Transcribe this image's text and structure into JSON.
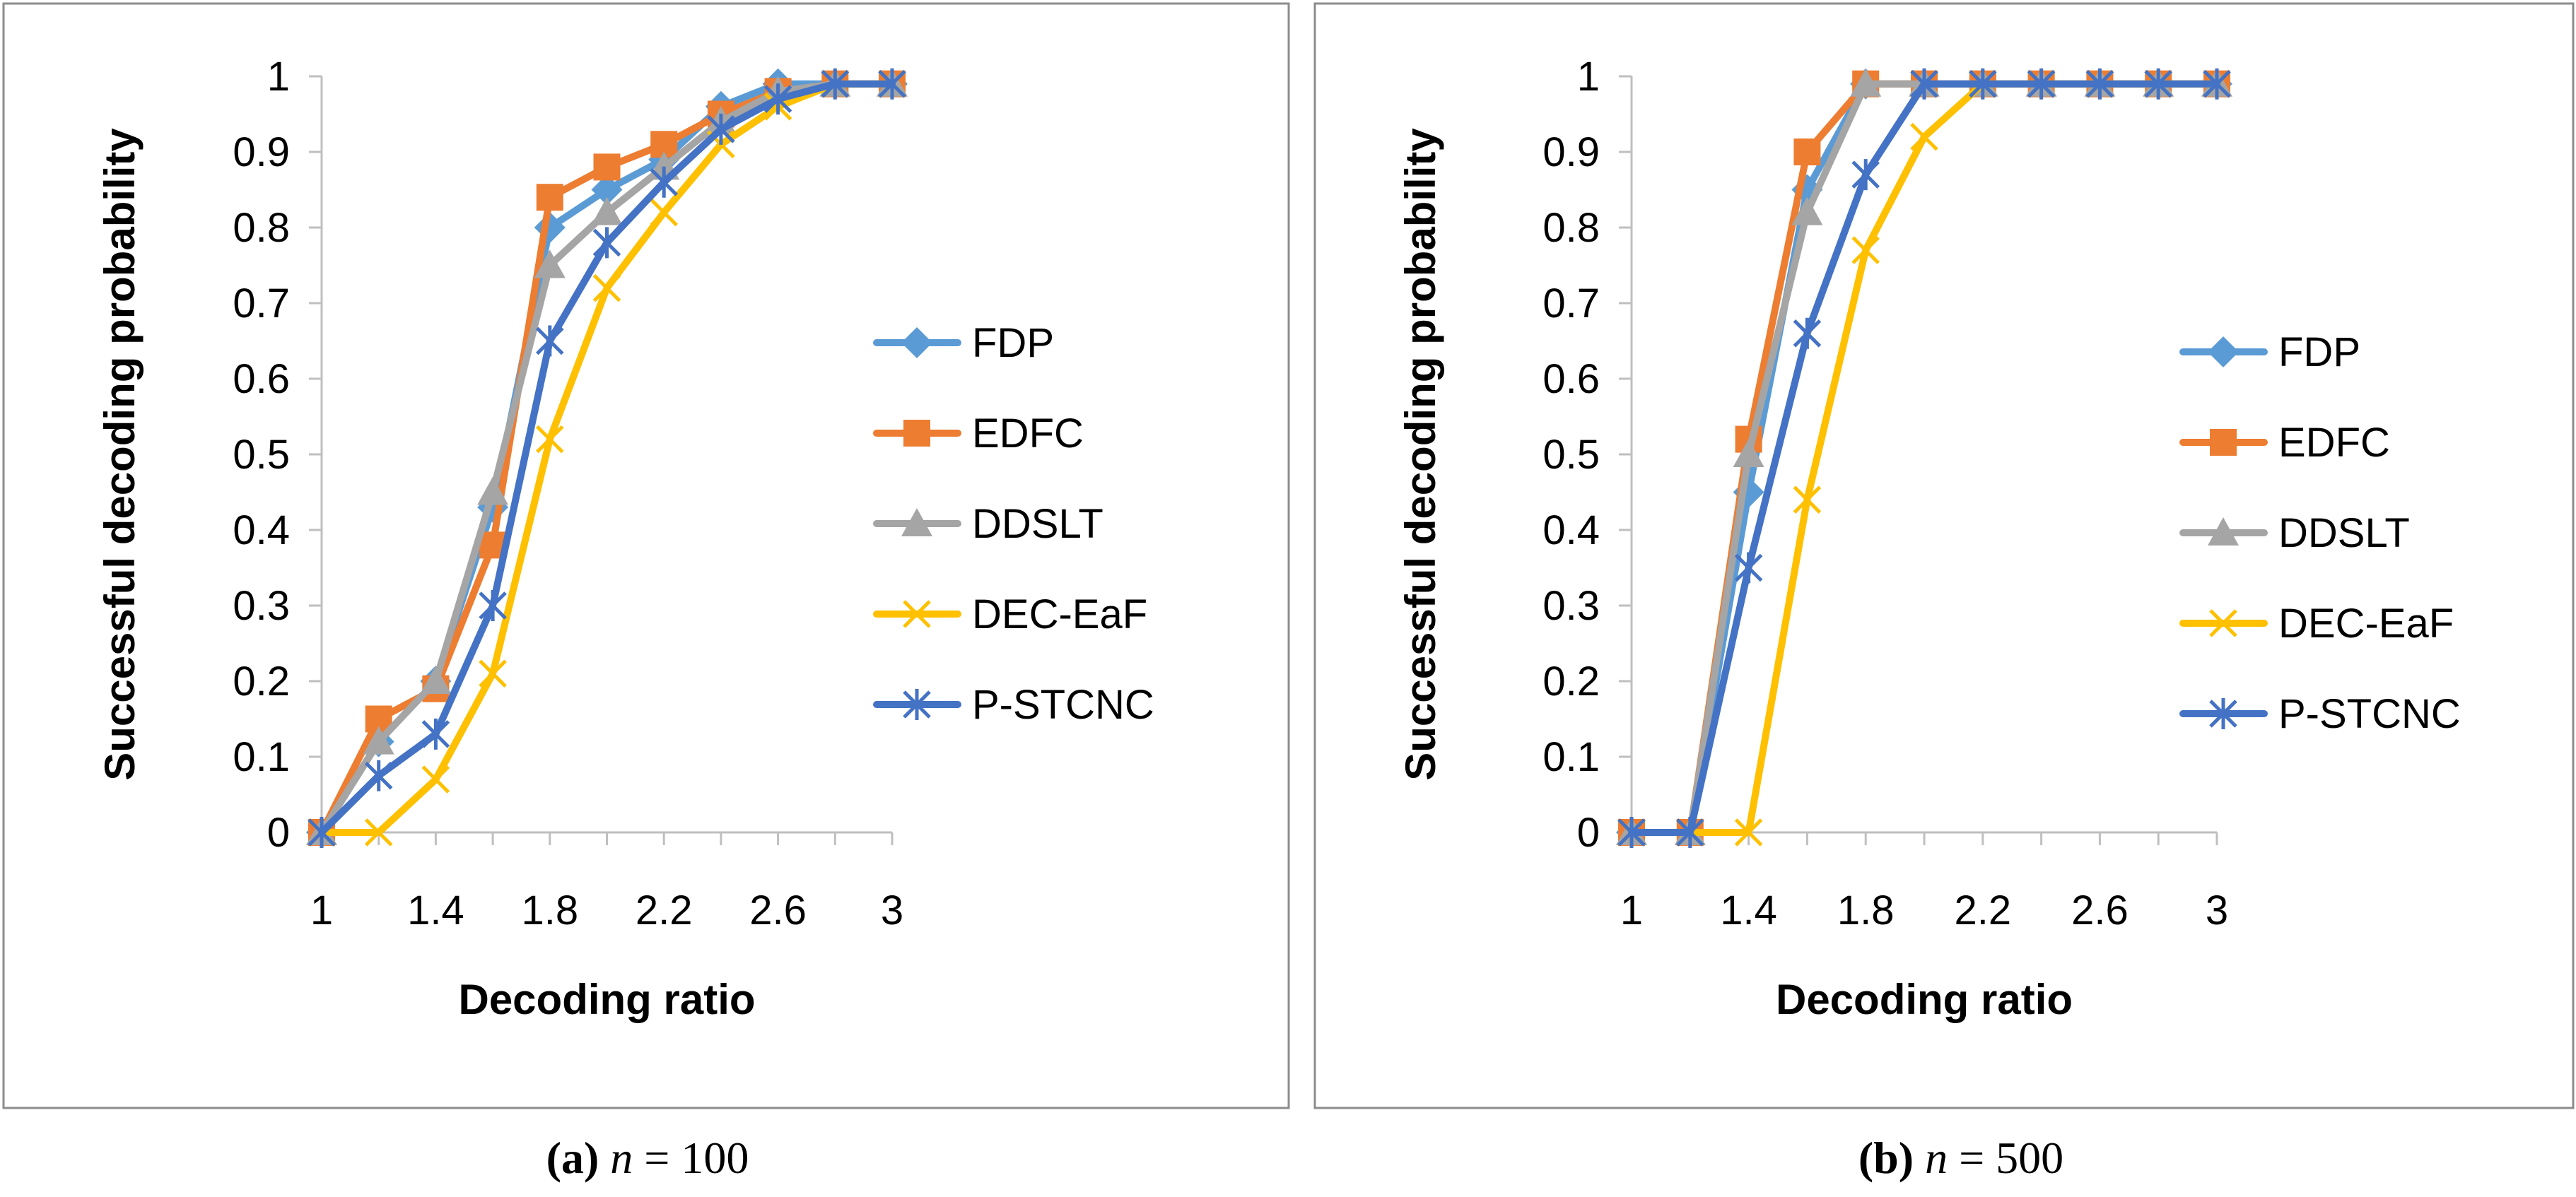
{
  "colors": {
    "FDP": "#5B9BD5",
    "EDFC": "#ED7D31",
    "DDSLT": "#A5A5A5",
    "DEC-EaF": "#FFC000",
    "P-STCNC": "#4472C4",
    "axis": "#bfbfbf",
    "frame": "#8c8c8c"
  },
  "markers": {
    "FDP": "diamond",
    "EDFC": "square",
    "DDSLT": "triangle",
    "DEC-EaF": "x",
    "P-STCNC": "star"
  },
  "chart_data": [
    {
      "type": "line",
      "panel_id": "a",
      "caption": {
        "letter": "(a)",
        "var": "n",
        "rest": " = 100"
      },
      "xlabel": "Decoding ratio",
      "ylabel": "Successful decoding probability",
      "x": [
        1,
        1.2,
        1.4,
        1.6,
        1.8,
        2,
        2.2,
        2.4,
        2.6,
        2.8,
        3
      ],
      "x_tick_labels": [
        "1",
        "1.4",
        "1.8",
        "2.2",
        "2.6",
        "3"
      ],
      "x_tick_values": [
        1,
        1.4,
        1.8,
        2.2,
        2.6,
        3
      ],
      "y_ticks": [
        "0",
        "0.1",
        "0.2",
        "0.3",
        "0.4",
        "0.5",
        "0.6",
        "0.7",
        "0.8",
        "0.9",
        "1"
      ],
      "ylim": [
        0,
        1
      ],
      "legend_position": "right",
      "series": [
        {
          "name": "FDP",
          "values": [
            0,
            0.12,
            0.2,
            0.43,
            0.8,
            0.85,
            0.89,
            0.96,
            0.99,
            0.99,
            0.99
          ]
        },
        {
          "name": "EDFC",
          "values": [
            0,
            0.15,
            0.19,
            0.38,
            0.84,
            0.88,
            0.91,
            0.95,
            0.98,
            0.99,
            0.99
          ]
        },
        {
          "name": "DDSLT",
          "values": [
            0,
            0.12,
            0.2,
            0.45,
            0.75,
            0.82,
            0.88,
            0.94,
            0.98,
            0.99,
            0.99
          ]
        },
        {
          "name": "DEC-EaF",
          "values": [
            0,
            0,
            0.07,
            0.21,
            0.52,
            0.72,
            0.82,
            0.91,
            0.96,
            0.99,
            0.99
          ]
        },
        {
          "name": "P-STCNC",
          "values": [
            0,
            0.075,
            0.13,
            0.3,
            0.65,
            0.78,
            0.86,
            0.93,
            0.97,
            0.99,
            0.99
          ]
        }
      ]
    },
    {
      "type": "line",
      "panel_id": "b",
      "caption": {
        "letter": "(b)",
        "var": "n",
        "rest": " = 500"
      },
      "xlabel": "Decoding ratio",
      "ylabel": "Successful decoding probability",
      "x": [
        1,
        1.2,
        1.4,
        1.6,
        1.8,
        2,
        2.2,
        2.4,
        2.6,
        2.8,
        3
      ],
      "x_tick_labels": [
        "1",
        "1.4",
        "1.8",
        "2.2",
        "2.6",
        "3"
      ],
      "x_tick_values": [
        1,
        1.4,
        1.8,
        2.2,
        2.6,
        3
      ],
      "y_ticks": [
        "0",
        "0.1",
        "0.2",
        "0.3",
        "0.4",
        "0.5",
        "0.6",
        "0.7",
        "0.8",
        "0.9",
        "1"
      ],
      "ylim": [
        0,
        1
      ],
      "legend_position": "right",
      "series": [
        {
          "name": "FDP",
          "values": [
            0,
            0,
            0.45,
            0.85,
            0.99,
            0.99,
            0.99,
            0.99,
            0.99,
            0.99,
            0.99
          ]
        },
        {
          "name": "EDFC",
          "values": [
            0,
            0,
            0.52,
            0.9,
            0.99,
            0.99,
            0.99,
            0.99,
            0.99,
            0.99,
            0.99
          ]
        },
        {
          "name": "DDSLT",
          "values": [
            0,
            0,
            0.5,
            0.82,
            0.99,
            0.99,
            0.99,
            0.99,
            0.99,
            0.99,
            0.99
          ]
        },
        {
          "name": "DEC-EaF",
          "values": [
            0,
            0,
            0,
            0.44,
            0.77,
            0.92,
            0.99,
            0.99,
            0.99,
            0.99,
            0.99
          ]
        },
        {
          "name": "P-STCNC",
          "values": [
            0,
            0,
            0.35,
            0.66,
            0.87,
            0.99,
            0.99,
            0.99,
            0.99,
            0.99,
            0.99
          ]
        }
      ]
    }
  ]
}
